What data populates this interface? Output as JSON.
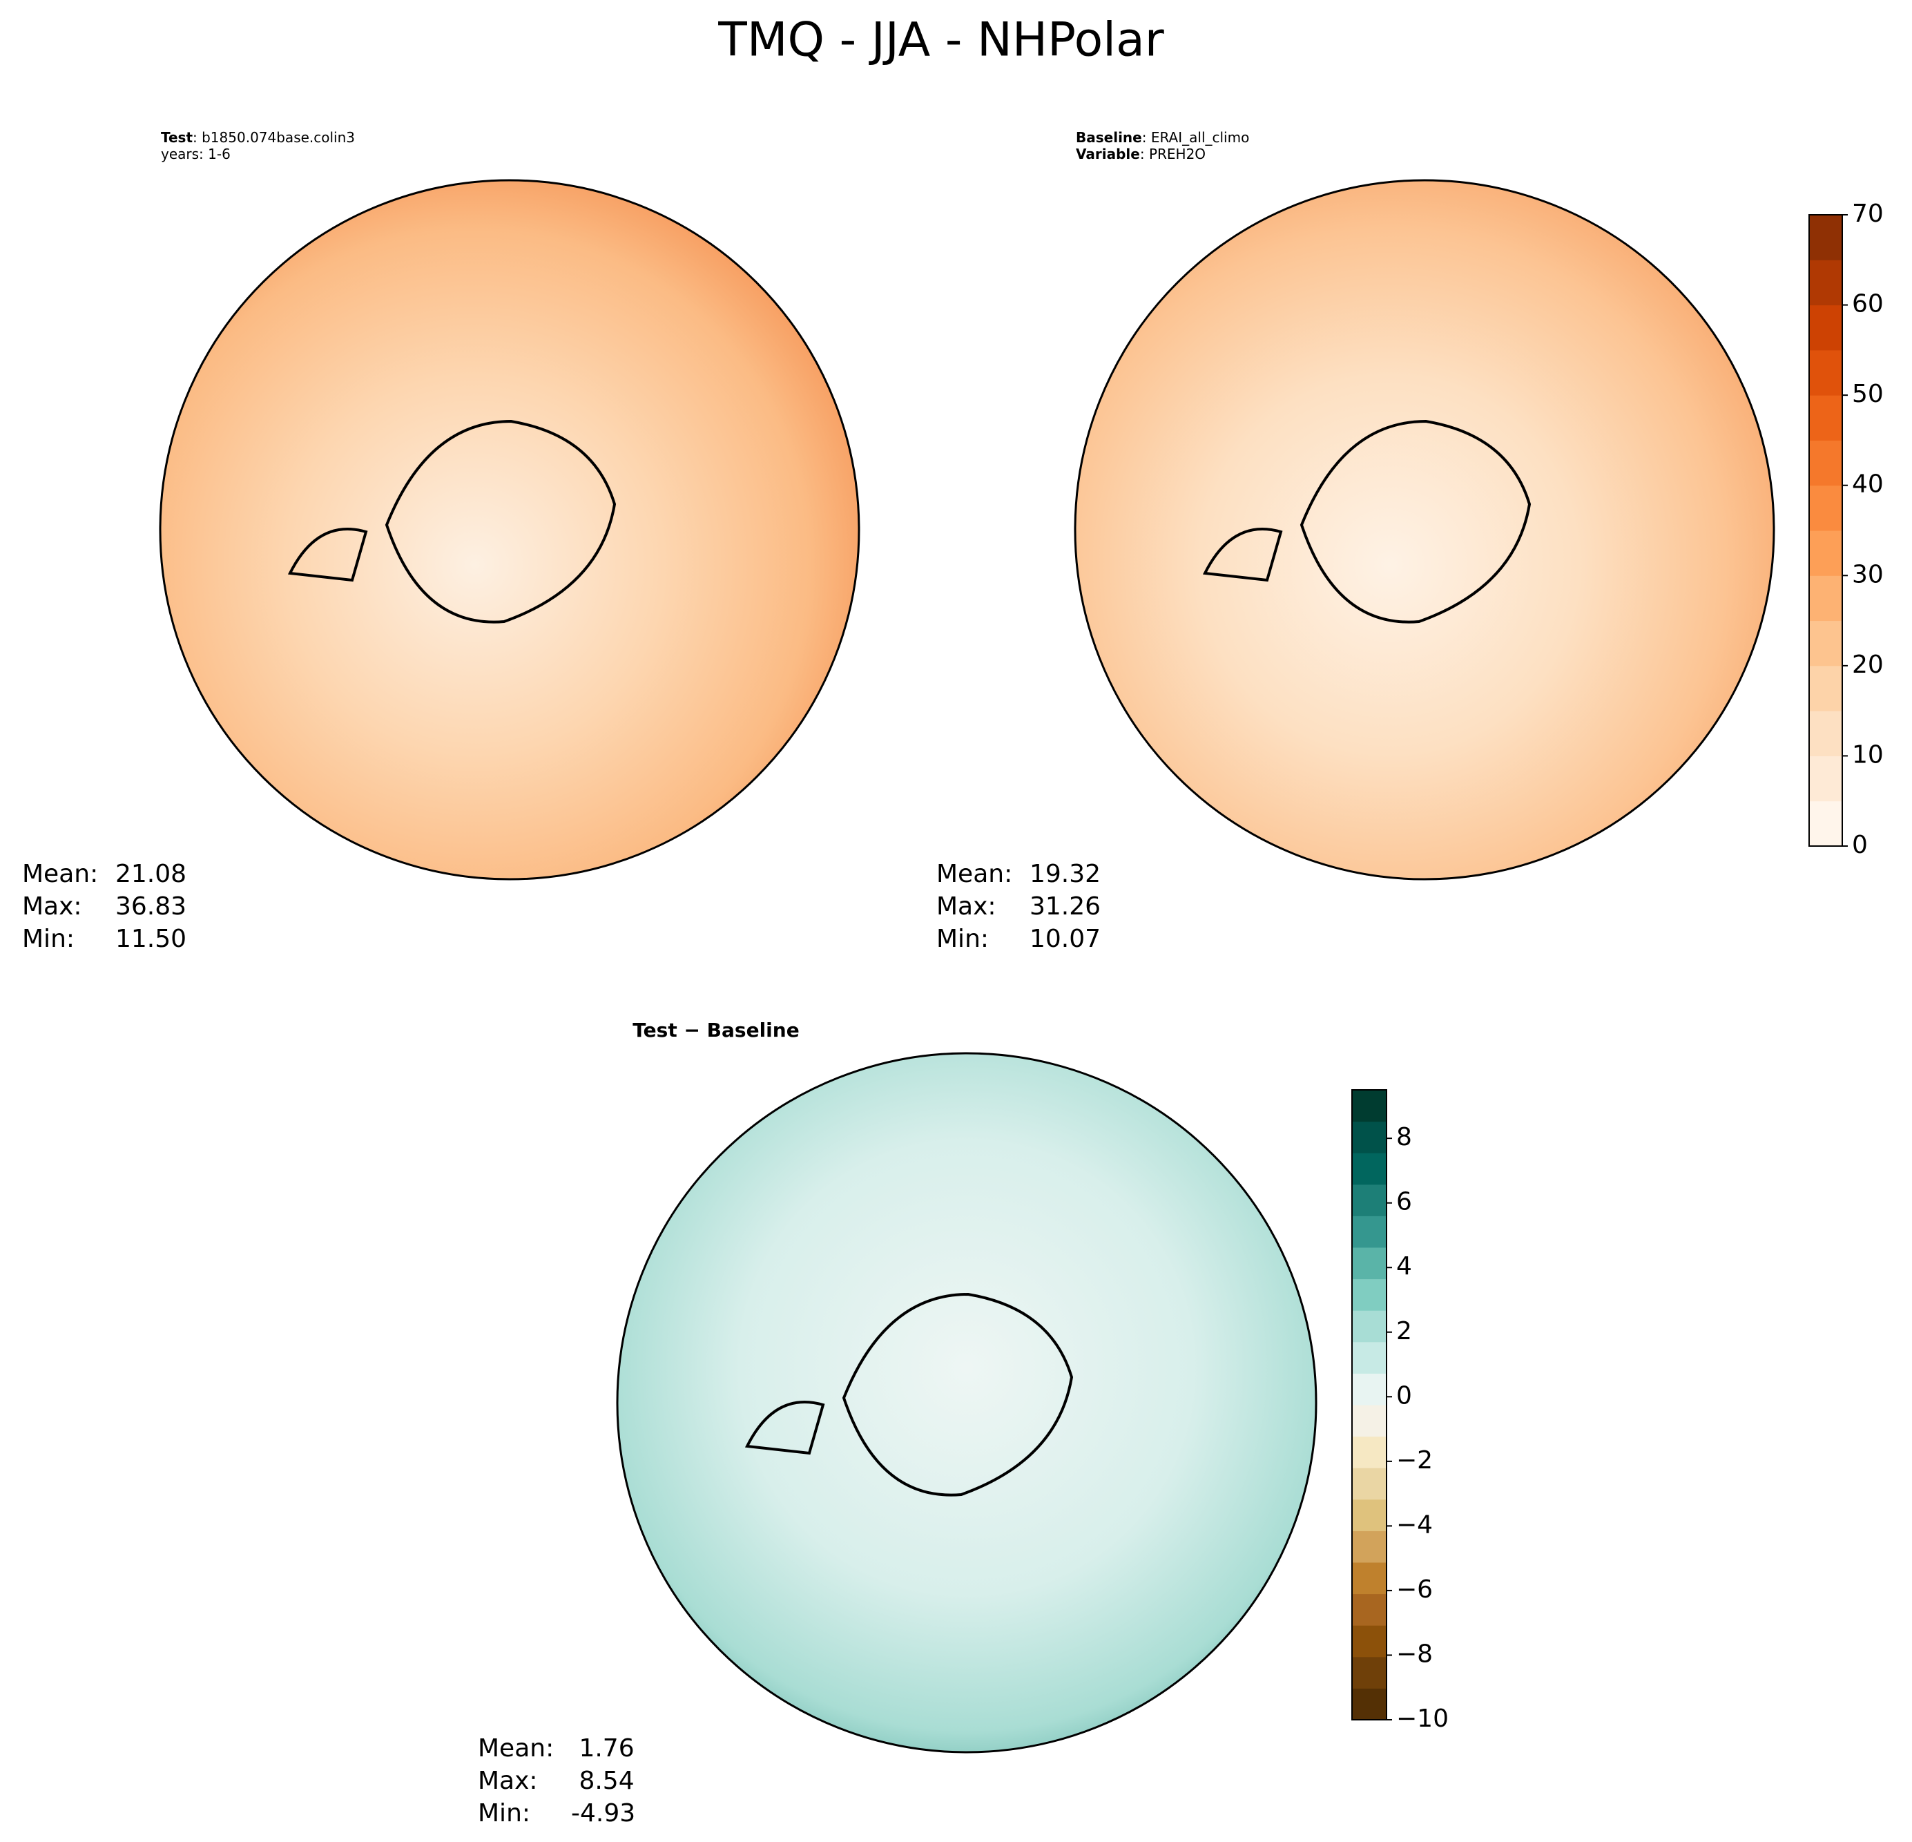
{
  "title": "TMQ - JJA - NHPolar",
  "chart_data": [
    {
      "type": "map",
      "subtitle": [
        {
          "key": "Test",
          "text": ": b1850.074base.colin3"
        },
        {
          "key": null,
          "text": "years: 1-6"
        }
      ],
      "stats": {
        "names": [
          "Mean:",
          "Max:",
          "Min:"
        ],
        "values": [
          21.08,
          36.83,
          11.5
        ],
        "value_labels": [
          "21.08",
          "36.83",
          "11.50"
        ]
      }
    },
    {
      "type": "map",
      "subtitle": [
        {
          "key": "Baseline",
          "text": ": ERAI_all_climo"
        },
        {
          "key": "Variable",
          "text": ": PREH2O"
        }
      ],
      "stats": {
        "names": [
          "Mean:",
          "Max:",
          "Min:"
        ],
        "values": [
          19.32,
          31.26,
          10.07
        ],
        "value_labels": [
          "19.32",
          "31.26",
          "10.07"
        ]
      },
      "colorbar": {
        "ylim": [
          0,
          70
        ],
        "yticks": [
          0,
          10,
          20,
          30,
          40,
          50,
          60,
          70
        ],
        "colors": [
          "#fff5eb",
          "#feead6",
          "#fde0c2",
          "#fdd3a9",
          "#fdc48f",
          "#fdb273",
          "#fd9f57",
          "#fa8b3f",
          "#f5782b",
          "#ed6418",
          "#e0520b",
          "#cd4203",
          "#b03903",
          "#8f3004"
        ]
      }
    },
    {
      "type": "map",
      "subtitle": [
        {
          "key": "Test − Baseline",
          "text": null
        }
      ],
      "stats": {
        "names": [
          "Mean:",
          "Max:",
          "Min:"
        ],
        "values": [
          1.76,
          8.54,
          -4.93
        ],
        "value_labels": [
          " 1.76",
          " 8.54",
          "-4.93"
        ]
      },
      "colorbar": {
        "ylim": [
          -10,
          9.5
        ],
        "yticks": [
          {
            "value": -10,
            "label": "−10"
          },
          {
            "value": -8,
            "label": "−8"
          },
          {
            "value": -6,
            "label": "−6"
          },
          {
            "value": -4,
            "label": "−4"
          },
          {
            "value": -2,
            "label": "−2"
          },
          0,
          2,
          4,
          6,
          8
        ],
        "colors": [
          "#543005",
          "#6f4009",
          "#8c510a",
          "#a86620",
          "#bf812d",
          "#d2a35b",
          "#dfc27d",
          "#ead6a4",
          "#f6e8c3",
          "#f5f1e6",
          "#e8f4f2",
          "#c7eae5",
          "#a8ddd5",
          "#80cdc1",
          "#5ab4a8",
          "#35978f",
          "#1d7f77",
          "#01665e",
          "#00524a",
          "#003c30"
        ]
      }
    }
  ]
}
